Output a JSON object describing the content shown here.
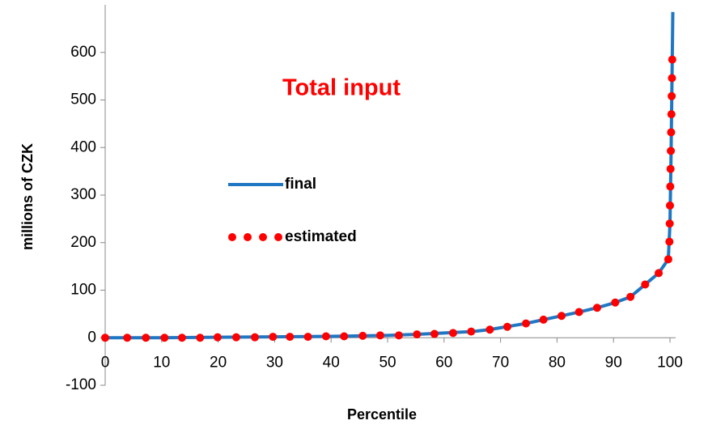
{
  "chart_data": {
    "type": "line",
    "title": "Total input",
    "x_label": "Percentile",
    "y_label": "millions of CZK",
    "xlim": [
      0,
      101
    ],
    "xticks": [
      0,
      10,
      20,
      30,
      40,
      50,
      60,
      70,
      80,
      90,
      100
    ],
    "ylim": [
      -100,
      700
    ],
    "yticks": [
      -100,
      0,
      100,
      200,
      300,
      400,
      500,
      600
    ],
    "legend": "left",
    "grid": false,
    "series": [
      {
        "name": "final",
        "color": "#1f77c4",
        "style": "line",
        "x": [
          0,
          10,
          20,
          30,
          40,
          50,
          55,
          60,
          65,
          68,
          71,
          74.5,
          77.6,
          80.8,
          83.9,
          87.1,
          90.3,
          93,
          95.6,
          98,
          99.7,
          100,
          100.2,
          100.4,
          100.5
        ],
        "values": [
          0,
          0,
          1,
          2,
          3,
          5,
          7,
          10,
          13,
          17,
          23,
          30,
          38,
          46,
          54,
          63,
          74,
          86,
          112,
          136,
          165,
          240,
          393,
          585,
          685
        ]
      },
      {
        "name": "estimated",
        "color": "#ff0000",
        "style": "dots",
        "x": [
          0,
          3.9,
          7.2,
          10.5,
          13.6,
          16.8,
          19.9,
          23.2,
          26.5,
          29.7,
          32.7,
          35.9,
          39.1,
          42.3,
          45.6,
          48.7,
          52,
          55.2,
          58.3,
          61.6,
          64.8,
          68.1,
          71.2,
          74.5,
          77.6,
          80.8,
          83.9,
          87.1,
          90.3,
          93,
          95.6,
          98,
          99.7,
          99.9,
          99.95,
          100,
          100.05,
          100.1,
          100.15,
          100.2,
          100.25,
          100.3,
          100.35,
          100.4
        ],
        "values": [
          0,
          0,
          0,
          0,
          0,
          0,
          1,
          1,
          1,
          2,
          2,
          2,
          3,
          3,
          4,
          5,
          5,
          7,
          8,
          10,
          13,
          17,
          23,
          30,
          38,
          46,
          54,
          63,
          74,
          86,
          112,
          136,
          165,
          202,
          240,
          278,
          318,
          355,
          393,
          432,
          470,
          508,
          546,
          585
        ]
      }
    ]
  }
}
